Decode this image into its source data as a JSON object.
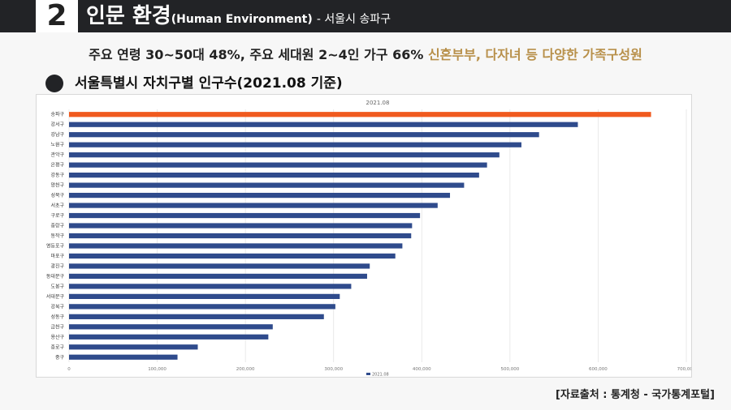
{
  "header": {
    "number": "2",
    "title": "인문 환경",
    "title_en": "(Human Environment)",
    "subtitle": "- 서울시 송파구"
  },
  "summary": {
    "main": "주요 연령 30~50대 48%, 주요 세대원 2~4인 가구 66%",
    "highlight": "신혼부부, 다자녀 등 다양한 가족구성원"
  },
  "chart_heading": "서울특별시 자치구별 인구수(2021.08 기준)",
  "source": "[자료출처 : 통계청 - 국가통계포털]",
  "colors": {
    "header_bg": "#222326",
    "highlight_text": "#b8904a",
    "bar_default": "#2f4b8c",
    "bar_highlight": "#f05a1e"
  },
  "chart_data": {
    "type": "bar",
    "orientation": "horizontal",
    "title": "2021.08",
    "legend": "2021.08",
    "legend_position": "bottom",
    "highlight_category": "송파구",
    "xlim": [
      0,
      700000
    ],
    "x_ticks": [
      "0",
      "100,000",
      "200,000",
      "300,000",
      "400,000",
      "500,000",
      "600,000",
      "700,000"
    ],
    "grid": true,
    "categories": [
      "송파구",
      "강서구",
      "강남구",
      "노원구",
      "관악구",
      "은평구",
      "강동구",
      "양천구",
      "성북구",
      "서초구",
      "구로구",
      "중랑구",
      "동작구",
      "영등포구",
      "마포구",
      "광진구",
      "동대문구",
      "도봉구",
      "서대문구",
      "강북구",
      "성동구",
      "금천구",
      "용산구",
      "종로구",
      "중구"
    ],
    "values": [
      660000,
      577000,
      533000,
      513000,
      488000,
      474000,
      465000,
      448000,
      432000,
      418000,
      398000,
      389000,
      388000,
      378000,
      370000,
      341000,
      338000,
      320000,
      307000,
      302000,
      289000,
      231000,
      226000,
      146000,
      123000
    ]
  }
}
